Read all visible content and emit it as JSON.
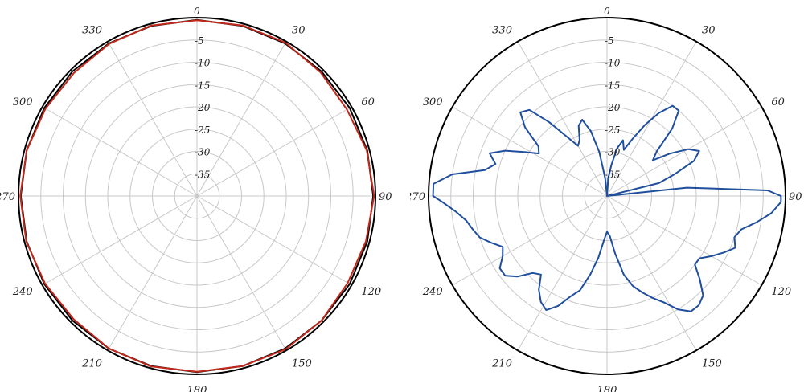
{
  "chart_data": [
    {
      "type": "polar",
      "title": "",
      "angle_unit": "degrees",
      "angle_zero": "top",
      "angle_direction": "clockwise",
      "angle_ticks": [
        0,
        30,
        60,
        90,
        120,
        150,
        180,
        210,
        240,
        270,
        300,
        330
      ],
      "radial_ticks": [
        0,
        -5,
        -10,
        -15,
        -20,
        -25,
        -30,
        -35
      ],
      "rlim": [
        -40,
        0
      ],
      "grid": true,
      "series": [
        {
          "color": "#000000",
          "points": [
            [
              0,
              -0.5
            ],
            [
              15,
              -0.5
            ],
            [
              30,
              -0.5
            ],
            [
              45,
              -0.5
            ],
            [
              60,
              -0.5
            ],
            [
              75,
              -0.5
            ],
            [
              90,
              -0.5
            ],
            [
              105,
              -0.5
            ],
            [
              120,
              -0.5
            ],
            [
              135,
              -0.5
            ],
            [
              150,
              -0.5
            ],
            [
              165,
              -0.5
            ],
            [
              180,
              -0.5
            ],
            [
              195,
              -0.5
            ],
            [
              210,
              -0.5
            ],
            [
              225,
              -0.5
            ],
            [
              240,
              -0.5
            ],
            [
              255,
              -0.5
            ],
            [
              270,
              -0.5
            ],
            [
              285,
              -0.5
            ],
            [
              300,
              -0.5
            ],
            [
              315,
              -0.5
            ],
            [
              330,
              -0.5
            ],
            [
              345,
              -0.5
            ],
            [
              360,
              -0.5
            ]
          ]
        },
        {
          "color": "#c0281c",
          "points": [
            [
              0,
              -0.6
            ],
            [
              15,
              -0.4
            ],
            [
              30,
              -0.3
            ],
            [
              45,
              -0.8
            ],
            [
              60,
              -1.2
            ],
            [
              75,
              -0.6
            ],
            [
              90,
              -0.3
            ],
            [
              105,
              -0.8
            ],
            [
              120,
              -1.0
            ],
            [
              135,
              -0.5
            ],
            [
              150,
              -0.3
            ],
            [
              165,
              -0.5
            ],
            [
              180,
              -0.6
            ],
            [
              195,
              -0.4
            ],
            [
              210,
              -0.5
            ],
            [
              225,
              -0.9
            ],
            [
              240,
              -0.7
            ],
            [
              255,
              -0.4
            ],
            [
              270,
              -0.4
            ],
            [
              285,
              -0.5
            ],
            [
              300,
              -0.8
            ],
            [
              315,
              -1.0
            ],
            [
              330,
              -0.6
            ],
            [
              345,
              -0.4
            ],
            [
              360,
              -0.6
            ]
          ]
        }
      ]
    },
    {
      "type": "polar",
      "title": "",
      "angle_unit": "degrees",
      "angle_zero": "top",
      "angle_direction": "clockwise",
      "angle_ticks": [
        0,
        30,
        60,
        90,
        120,
        150,
        180,
        210,
        240,
        270,
        300,
        330
      ],
      "radial_ticks": [
        0,
        -5,
        -10,
        -15,
        -20,
        -25,
        -30,
        -35
      ],
      "rlim": [
        -40,
        0
      ],
      "grid": true,
      "series": [
        {
          "color": "#1f4e9c",
          "points": [
            [
              0,
              -40
            ],
            [
              4,
              -36
            ],
            [
              8,
              -33
            ],
            [
              12,
              -29
            ],
            [
              16,
              -27
            ],
            [
              20,
              -29
            ],
            [
              24,
              -26
            ],
            [
              28,
              -22
            ],
            [
              32,
              -18
            ],
            [
              36,
              -15
            ],
            [
              40,
              -15
            ],
            [
              44,
              -19
            ],
            [
              48,
              -25
            ],
            [
              52,
              -27
            ],
            [
              56,
              -23
            ],
            [
              60,
              -19
            ],
            [
              64,
              -17
            ],
            [
              68,
              -19
            ],
            [
              72,
              -24
            ],
            [
              76,
              -28
            ],
            [
              80,
              -40
            ],
            [
              84,
              -22
            ],
            [
              88,
              -4
            ],
            [
              90,
              -1
            ],
            [
              92,
              -1
            ],
            [
              96,
              -3
            ],
            [
              100,
              -6
            ],
            [
              104,
              -9
            ],
            [
              108,
              -10
            ],
            [
              112,
              -9
            ],
            [
              116,
              -11
            ],
            [
              120,
              -13
            ],
            [
              124,
              -15
            ],
            [
              128,
              -15
            ],
            [
              132,
              -12
            ],
            [
              136,
              -9
            ],
            [
              140,
              -8
            ],
            [
              144,
              -8
            ],
            [
              148,
              -10
            ],
            [
              152,
              -13
            ],
            [
              156,
              -15
            ],
            [
              160,
              -17
            ],
            [
              164,
              -19
            ],
            [
              168,
              -22
            ],
            [
              172,
              -27
            ],
            [
              176,
              -31
            ],
            [
              180,
              -32
            ],
            [
              184,
              -30
            ],
            [
              188,
              -26
            ],
            [
              192,
              -22
            ],
            [
              196,
              -18
            ],
            [
              200,
              -16
            ],
            [
              204,
              -13
            ],
            [
              208,
              -11
            ],
            [
              212,
              -12
            ],
            [
              216,
              -14
            ],
            [
              220,
              -17
            ],
            [
              224,
              -16
            ],
            [
              228,
              -13
            ],
            [
              232,
              -11
            ],
            [
              236,
              -11
            ],
            [
              240,
              -13
            ],
            [
              244,
              -14
            ],
            [
              248,
              -12
            ],
            [
              252,
              -10
            ],
            [
              256,
              -9
            ],
            [
              260,
              -8
            ],
            [
              264,
              -6
            ],
            [
              268,
              -3
            ],
            [
              270,
              -1
            ],
            [
              274,
              -1
            ],
            [
              278,
              -5
            ],
            [
              282,
              -12
            ],
            [
              286,
              -14
            ],
            [
              290,
              -12
            ],
            [
              294,
              -15
            ],
            [
              298,
              -19
            ],
            [
              302,
              -22
            ],
            [
              306,
              -21
            ],
            [
              310,
              -16
            ],
            [
              314,
              -13
            ],
            [
              318,
              -14
            ],
            [
              322,
              -19
            ],
            [
              326,
              -24
            ],
            [
              330,
              -27
            ],
            [
              334,
              -26
            ],
            [
              338,
              -23
            ],
            [
              342,
              -22
            ],
            [
              346,
              -25
            ],
            [
              350,
              -30
            ],
            [
              354,
              -36
            ],
            [
              358,
              -40
            ],
            [
              360,
              -40
            ]
          ]
        }
      ]
    }
  ]
}
